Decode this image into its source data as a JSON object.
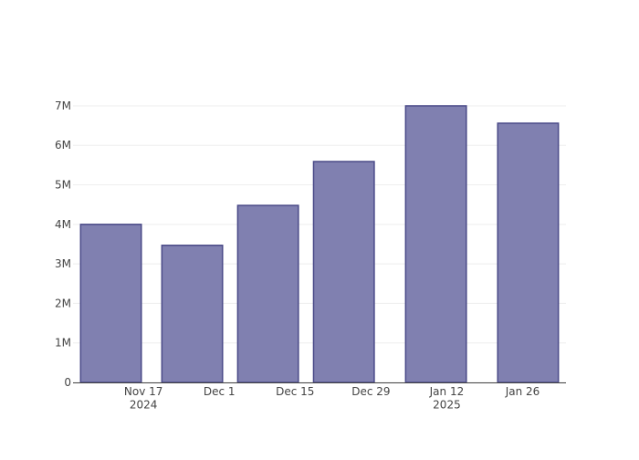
{
  "chart_data": {
    "type": "bar",
    "x": [
      "2024-11-11",
      "2024-11-26",
      "2024-12-10",
      "2024-12-24",
      "2025-01-10",
      "2025-01-27"
    ],
    "values": [
      4000000,
      3470000,
      4480000,
      5590000,
      7000000,
      6560000
    ],
    "color": "#8080b0",
    "edge_color": "#4a4a88",
    "xlim": [
      "2024-11-04",
      "2025-02-03"
    ],
    "xticks": [
      {
        "value": "2024-11-17",
        "label": "Nov 17\n2024"
      },
      {
        "value": "2024-12-01",
        "label": "Dec 1"
      },
      {
        "value": "2024-12-15",
        "label": "Dec 15"
      },
      {
        "value": "2024-12-29",
        "label": "Dec 29"
      },
      {
        "value": "2025-01-12",
        "label": "Jan 12\n2025"
      },
      {
        "value": "2025-01-26",
        "label": "Jan 26"
      }
    ],
    "ylim": [
      0,
      7368421
    ],
    "yticks": [
      0,
      {
        "value": 1000000,
        "label": "1M"
      },
      {
        "value": 2000000,
        "label": "2M"
      },
      {
        "value": 3000000,
        "label": "3M"
      },
      {
        "value": 4000000,
        "label": "4M"
      },
      {
        "value": 5000000,
        "label": "5M"
      },
      {
        "value": 6000000,
        "label": "6M"
      },
      {
        "value": 7000000,
        "label": "7M"
      }
    ],
    "grid": true
  }
}
